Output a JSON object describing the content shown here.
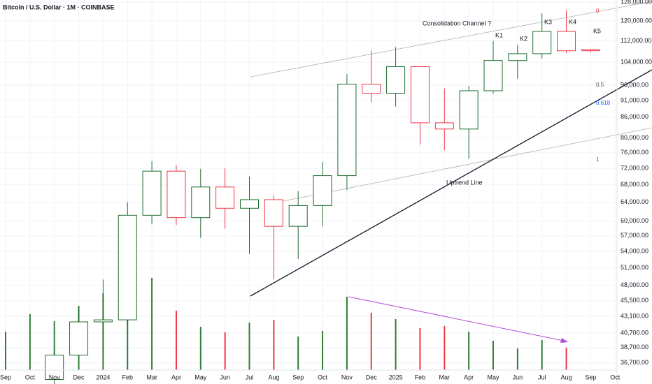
{
  "chart_data": {
    "type": "candlestick",
    "title": "Bitcoin / U.S. Dollar · 1M · COINBASE",
    "categories": [
      "Sep",
      "Oct",
      "Nov",
      "Dec",
      "2024",
      "Feb",
      "Mar",
      "Apr",
      "May",
      "Jun",
      "Jul",
      "Aug",
      "Sep",
      "Oct",
      "Nov",
      "Dec",
      "2025",
      "Feb",
      "Mar",
      "Apr",
      "May",
      "Jun",
      "Jul",
      "Aug",
      "Sep",
      "Oct"
    ],
    "open": [
      null,
      null,
      34650,
      37700,
      42300,
      42600,
      61200,
      71300,
      60700,
      67500,
      62700,
      64600,
      58900,
      63300,
      70200,
      96400,
      93400,
      102400,
      84300,
      82500,
      94200,
      104600,
      107100,
      115700,
      108600,
      null
    ],
    "high": [
      null,
      null,
      38000,
      44700,
      48970,
      64000,
      73800,
      72800,
      71900,
      72000,
      70000,
      65600,
      66500,
      73600,
      99800,
      108300,
      109600,
      102500,
      95000,
      95800,
      111900,
      110400,
      123200,
      124400,
      108900,
      null
    ],
    "low": [
      null,
      null,
      34100,
      37600,
      38500,
      41900,
      59300,
      59200,
      56600,
      58400,
      53500,
      49000,
      52600,
      58900,
      66800,
      90500,
      89200,
      78200,
      76600,
      74400,
      93300,
      98200,
      105300,
      107300,
      107600,
      null
    ],
    "close": [
      null,
      null,
      37700,
      42300,
      42600,
      61200,
      71300,
      60700,
      67500,
      62700,
      64600,
      58900,
      63300,
      70200,
      96400,
      93400,
      102400,
      84300,
      82500,
      94200,
      104600,
      107100,
      115700,
      108200,
      108300,
      null
    ],
    "up_color": "#1e6b2e",
    "down_color": "#f23645",
    "volume": [
      55,
      80,
      70,
      92,
      110,
      126,
      132,
      85,
      62,
      54,
      68,
      72,
      48,
      56,
      105,
      82,
      73,
      60,
      63,
      55,
      42,
      31,
      43,
      32,
      null,
      null
    ],
    "volume_colors": [
      "#2e7d32",
      "#2e7d32",
      "#2e7d32",
      "#2e7d32",
      "#2e7d32",
      "#2e7d32",
      "#2e7d32",
      "#f23645",
      "#2e7d32",
      "#f23645",
      "#2e7d32",
      "#f23645",
      "#2e7d32",
      "#2e7d32",
      "#2e7d32",
      "#f23645",
      "#2e7d32",
      "#f23645",
      "#f23645",
      "#2e7d32",
      "#2e7d32",
      "#2e7d32",
      "#2e7d32",
      "#f23645",
      null,
      null
    ],
    "log_scale": true,
    "grid": true,
    "ylim": [
      35800,
      129000
    ],
    "yticks": [
      {
        "value": 128000,
        "label": "128,000.00"
      },
      {
        "value": 120000,
        "label": "120,000.00"
      },
      {
        "value": 112000,
        "label": "112,000.00"
      },
      {
        "value": 104000,
        "label": "104,000.00"
      },
      {
        "value": 96000,
        "label": "96,000.00"
      },
      {
        "value": 91000,
        "label": "91,000.00"
      },
      {
        "value": 86000,
        "label": "86,000.00"
      },
      {
        "value": 80000,
        "label": "80,000.00"
      },
      {
        "value": 76000,
        "label": "76,000.00"
      },
      {
        "value": 72000,
        "label": "72,000.00"
      },
      {
        "value": 68000,
        "label": "68,000.00"
      },
      {
        "value": 64000,
        "label": "64,000.00"
      },
      {
        "value": 60000,
        "label": "60,000.00"
      },
      {
        "value": 57000,
        "label": "57,000.00"
      },
      {
        "value": 54000,
        "label": "54,000.00"
      },
      {
        "value": 51000,
        "label": "51,000.00"
      },
      {
        "value": 48000,
        "label": "48,000.00"
      },
      {
        "value": 45500,
        "label": "45,500.00"
      },
      {
        "value": 43100,
        "label": "43,100.00"
      },
      {
        "value": 40700,
        "label": "40,700.00"
      },
      {
        "value": 38700,
        "label": "38,700.00"
      },
      {
        "value": 36700,
        "label": "36,700.00"
      }
    ],
    "annotations": {
      "channel": "Consolidation Channel ?",
      "uptrend": "Uptrend Line",
      "k1": "K1",
      "k2": "K2",
      "k3": "K3",
      "k4": "K4",
      "k5": "K5",
      "fib_0": "0",
      "fib_05": "0.5",
      "fib_0618": "0.618",
      "fib_1": "1"
    }
  }
}
